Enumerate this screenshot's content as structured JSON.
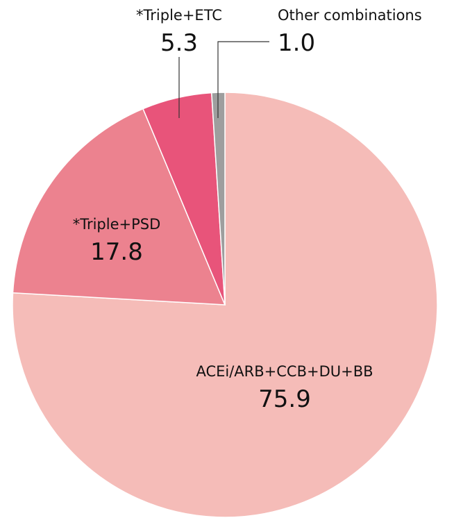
{
  "chart_data": {
    "type": "pie",
    "categories": [
      "ACEi/ARB+CCB+DU+BB",
      "*Triple+PSD",
      "*Triple+ETC",
      "Other combinations"
    ],
    "values": [
      75.9,
      17.8,
      5.3,
      1.0
    ],
    "value_labels": [
      "75.9",
      "17.8",
      "5.3",
      "1.0"
    ],
    "colors": [
      "#f5bcb8",
      "#ec828f",
      "#e8547a",
      "#9e9e9e"
    ]
  }
}
